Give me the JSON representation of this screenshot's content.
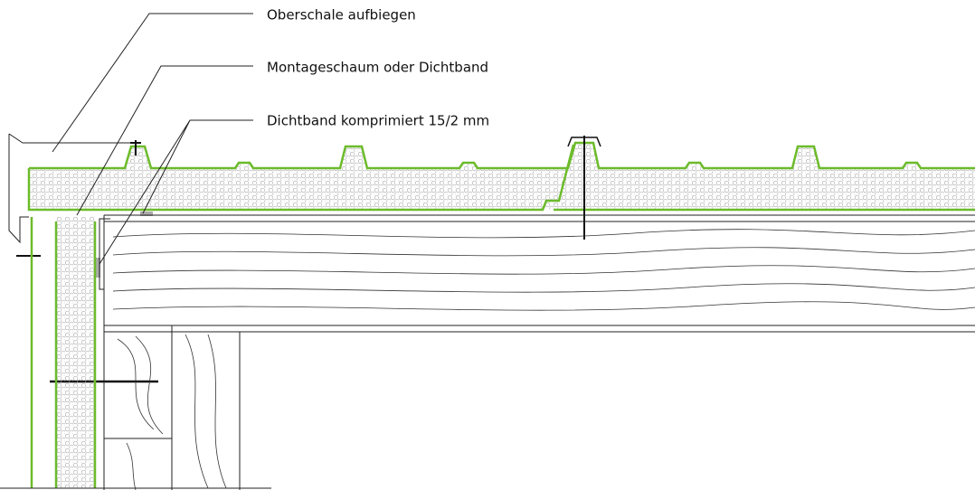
{
  "labels": [
    "Oberschale aufbiegen",
    "Montageschaum oder Dichtband",
    "Dichtband komprimiert 15/2 mm"
  ]
}
